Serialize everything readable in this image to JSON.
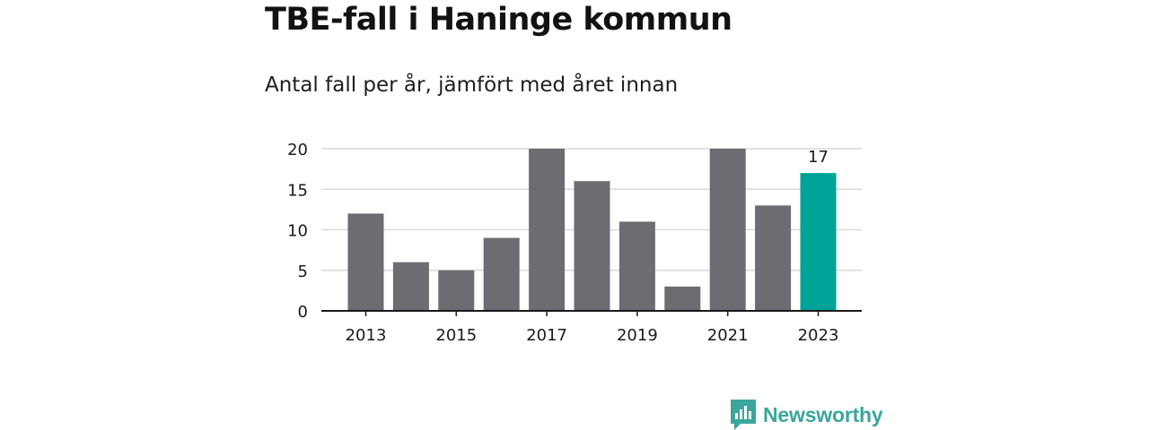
{
  "title": "TBE-fall i Haninge kommun",
  "subtitle": "Antal fall per år, jämfört med året innan",
  "brand": {
    "name": "Newsworthy",
    "icon": "newsworthy-logo-icon",
    "color": "#3aa69c"
  },
  "colors": {
    "bar": "#6d6c72",
    "highlight": "#00a398",
    "grid": "#d9d9d9",
    "axis": "#1a1a1a",
    "text": "#1a1a1a"
  },
  "chart_data": {
    "type": "bar",
    "title": "TBE-fall i Haninge kommun",
    "subtitle": "Antal fall per år, jämfört med året innan",
    "categories": [
      "2013",
      "2014",
      "2015",
      "2016",
      "2017",
      "2018",
      "2019",
      "2020",
      "2021",
      "2022",
      "2023"
    ],
    "values": [
      12,
      6,
      5,
      9,
      20,
      16,
      11,
      3,
      20,
      13,
      17
    ],
    "x_tick_labels": [
      "2013",
      "2015",
      "2017",
      "2019",
      "2021",
      "2023"
    ],
    "y_ticks": [
      0,
      5,
      10,
      15,
      20
    ],
    "ylim": [
      0,
      20
    ],
    "grid": true,
    "highlight_index": 10,
    "data_labels": [
      {
        "index": 10,
        "text": "17"
      }
    ],
    "xlabel": "",
    "ylabel": ""
  }
}
